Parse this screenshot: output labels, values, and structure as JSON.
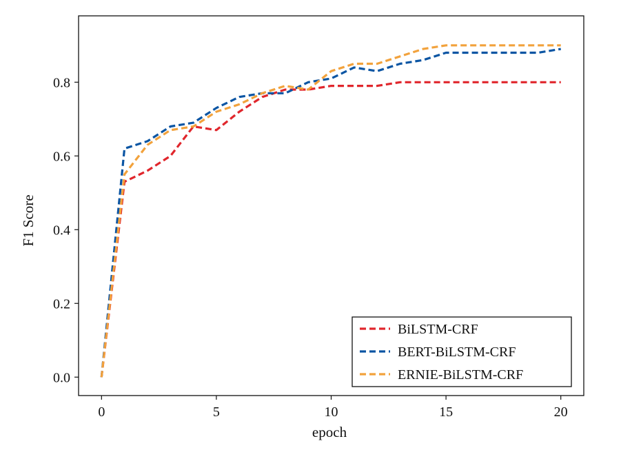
{
  "chart_data": {
    "type": "line",
    "xlabel": "epoch",
    "ylabel": "F1 Score",
    "xlim": [
      -1,
      21
    ],
    "ylim": [
      -0.05,
      0.98
    ],
    "xticks": [
      0,
      5,
      10,
      15,
      20
    ],
    "xtick_labels": [
      "0",
      "5",
      "10",
      "15",
      "20"
    ],
    "yticks": [
      0.0,
      0.2,
      0.4,
      0.6,
      0.8
    ],
    "ytick_labels": [
      "0.0",
      "0.2",
      "0.4",
      "0.6",
      "0.8"
    ],
    "grid": false,
    "legend_position": "bottom-right",
    "x": [
      0,
      1,
      2,
      3,
      4,
      5,
      6,
      7,
      8,
      9,
      10,
      11,
      12,
      13,
      14,
      15,
      16,
      17,
      18,
      19,
      20
    ],
    "series": [
      {
        "name": "BiLSTM-CRF",
        "color": "#e0262c",
        "values": [
          0.0,
          0.53,
          0.56,
          0.6,
          0.68,
          0.67,
          0.72,
          0.76,
          0.78,
          0.78,
          0.79,
          0.79,
          0.79,
          0.8,
          0.8,
          0.8,
          0.8,
          0.8,
          0.8,
          0.8,
          0.8
        ]
      },
      {
        "name": "BERT-BiLSTM-CRF",
        "color": "#0b55a3",
        "values": [
          0.0,
          0.62,
          0.64,
          0.68,
          0.69,
          0.73,
          0.76,
          0.77,
          0.77,
          0.8,
          0.81,
          0.84,
          0.83,
          0.85,
          0.86,
          0.88,
          0.88,
          0.88,
          0.88,
          0.88,
          0.89
        ]
      },
      {
        "name": "ERNIE-BiLSTM-CRF",
        "color": "#f2a23c",
        "values": [
          0.0,
          0.55,
          0.63,
          0.67,
          0.68,
          0.72,
          0.74,
          0.77,
          0.79,
          0.78,
          0.83,
          0.85,
          0.85,
          0.87,
          0.89,
          0.9,
          0.9,
          0.9,
          0.9,
          0.9,
          0.9
        ]
      }
    ]
  }
}
